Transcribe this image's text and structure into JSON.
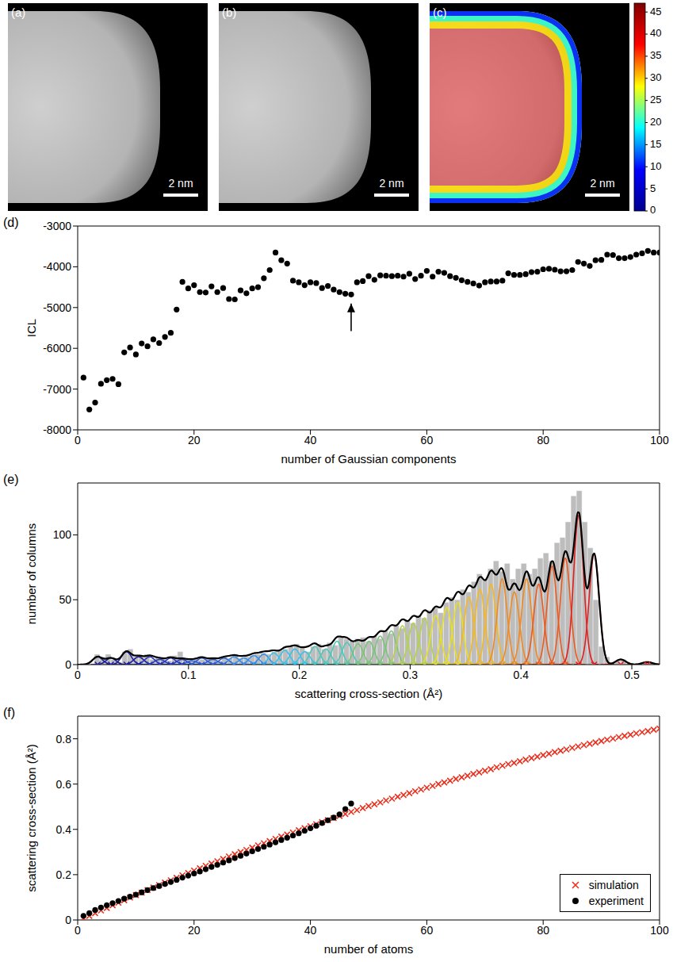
{
  "panels": {
    "images": [
      {
        "label": "(a)",
        "scale_bar": "2 nm"
      },
      {
        "label": "(b)",
        "scale_bar": "2 nm"
      },
      {
        "label": "(c)",
        "scale_bar": "2 nm",
        "colorbar": {
          "range": [
            0,
            47
          ],
          "ticks": [
            0,
            5,
            10,
            15,
            20,
            25,
            30,
            35,
            40,
            45
          ],
          "colors": [
            "#00008f",
            "#0000ff",
            "#00ffff",
            "#ffff00",
            "#ff0000",
            "#800000"
          ]
        }
      }
    ]
  },
  "chart_data": [
    {
      "type": "scatter",
      "panel": "(d)",
      "xlabel": "number of Gaussian components",
      "ylabel": "ICL",
      "color": "#000000",
      "marker": "circle",
      "x": [
        1,
        2,
        3,
        4,
        5,
        6,
        7,
        8,
        9,
        10,
        11,
        12,
        13,
        14,
        15,
        16,
        17,
        18,
        19,
        20,
        21,
        22,
        23,
        24,
        25,
        26,
        27,
        28,
        29,
        30,
        31,
        32,
        33,
        34,
        35,
        36,
        37,
        38,
        39,
        40,
        41,
        42,
        43,
        44,
        45,
        46,
        47,
        48,
        49,
        50,
        51,
        52,
        53,
        54,
        55,
        56,
        57,
        58,
        59,
        60,
        61,
        62,
        63,
        64,
        65,
        66,
        67,
        68,
        69,
        70,
        71,
        72,
        73,
        74,
        75,
        76,
        77,
        78,
        79,
        80,
        81,
        82,
        83,
        84,
        85,
        86,
        87,
        88,
        89,
        90,
        91,
        92,
        93,
        94,
        95,
        96,
        97,
        98,
        99,
        100
      ],
      "values": [
        -6720,
        -7500,
        -7330,
        -6870,
        -6780,
        -6750,
        -6880,
        -6100,
        -5980,
        -6150,
        -5880,
        -5950,
        -5780,
        -5870,
        -5720,
        -5620,
        -5050,
        -4370,
        -4530,
        -4450,
        -4620,
        -4630,
        -4480,
        -4620,
        -4520,
        -4790,
        -4800,
        -4580,
        -4650,
        -4530,
        -4500,
        -4280,
        -4080,
        -3650,
        -3840,
        -3920,
        -4340,
        -4380,
        -4450,
        -4380,
        -4400,
        -4520,
        -4470,
        -4560,
        -4620,
        -4660,
        -4680,
        -4380,
        -4350,
        -4230,
        -4320,
        -4210,
        -4220,
        -4230,
        -4220,
        -4240,
        -4170,
        -4300,
        -4220,
        -4100,
        -4240,
        -4120,
        -4150,
        -4230,
        -4270,
        -4330,
        -4370,
        -4410,
        -4460,
        -4380,
        -4360,
        -4360,
        -4340,
        -4160,
        -4200,
        -4200,
        -4180,
        -4130,
        -4120,
        -4060,
        -4050,
        -4070,
        -4110,
        -4110,
        -4080,
        -3880,
        -3920,
        -3980,
        -3840,
        -3830,
        -3700,
        -3710,
        -3790,
        -3790,
        -3760,
        -3700,
        -3670,
        -3610,
        -3650,
        -3650
      ],
      "arrow": {
        "x": 47,
        "y": [
          -5580,
          -4900
        ]
      },
      "xlim": [
        0,
        100
      ],
      "xticks": [
        0,
        20,
        40,
        60,
        80,
        100
      ],
      "ylim": [
        -8000,
        -3000
      ],
      "yticks": [
        -8000,
        -7000,
        -6000,
        -5000,
        -4000,
        -3000
      ]
    },
    {
      "type": "histogram",
      "panel": "(e)",
      "xlabel": "scattering cross-section (Å²)",
      "ylabel": "number of columns",
      "color": "#bdbdbd",
      "bins": [
        0,
        0.005,
        0.01,
        0.015,
        0.02,
        0.025,
        0.03,
        0.035,
        0.04,
        0.045,
        0.05,
        0.055,
        0.06,
        0.065,
        0.07,
        0.075,
        0.08,
        0.085,
        0.09,
        0.095,
        0.1,
        0.105,
        0.11,
        0.115,
        0.12,
        0.125,
        0.13,
        0.135,
        0.14,
        0.145,
        0.15,
        0.155,
        0.16,
        0.165,
        0.17,
        0.175,
        0.18,
        0.185,
        0.19,
        0.195,
        0.2,
        0.205,
        0.21,
        0.215,
        0.22,
        0.225,
        0.23,
        0.235,
        0.24,
        0.245,
        0.25,
        0.255,
        0.26,
        0.265,
        0.27,
        0.275,
        0.28,
        0.285,
        0.29,
        0.295,
        0.3,
        0.305,
        0.31,
        0.315,
        0.32,
        0.325,
        0.33,
        0.335,
        0.34,
        0.345,
        0.35,
        0.355,
        0.36,
        0.365,
        0.37,
        0.375,
        0.38,
        0.385,
        0.39,
        0.395,
        0.4,
        0.405,
        0.41,
        0.415,
        0.42,
        0.425,
        0.43,
        0.435,
        0.44,
        0.445,
        0.45,
        0.455,
        0.46,
        0.465,
        0.47,
        0.475,
        0.48,
        0.485,
        0.49,
        0.495,
        0.5,
        0.505,
        0.51,
        0.515,
        0.52,
        0.525
      ],
      "counts": [
        0,
        0,
        0,
        8,
        6,
        8,
        4,
        2,
        10,
        12,
        6,
        7,
        8,
        4,
        6,
        5,
        3,
        7,
        10,
        4,
        3,
        5,
        4,
        5,
        6,
        3,
        6,
        5,
        7,
        5,
        6,
        7,
        8,
        9,
        8,
        10,
        11,
        12,
        14,
        16,
        13,
        10,
        14,
        16,
        12,
        17,
        15,
        22,
        20,
        18,
        20,
        21,
        18,
        22,
        20,
        26,
        24,
        30,
        28,
        34,
        32,
        38,
        36,
        42,
        44,
        40,
        48,
        52,
        50,
        58,
        56,
        64,
        70,
        66,
        74,
        80,
        72,
        78,
        66,
        74,
        78,
        70,
        74,
        82,
        86,
        80,
        94,
        98,
        110,
        130,
        134,
        110,
        90,
        50,
        14,
        6,
        2,
        3,
        4,
        1,
        0,
        1,
        2,
        1,
        0
      ],
      "components": {
        "marker": "x",
        "sigma": 0.0045,
        "centers": [
          0.018,
          0.03,
          0.044,
          0.055,
          0.065,
          0.074,
          0.084,
          0.094,
          0.103,
          0.112,
          0.122,
          0.132,
          0.141,
          0.15,
          0.159,
          0.168,
          0.177,
          0.187,
          0.196,
          0.205,
          0.214,
          0.224,
          0.234,
          0.243,
          0.253,
          0.263,
          0.273,
          0.283,
          0.293,
          0.303,
          0.313,
          0.323,
          0.333,
          0.343,
          0.353,
          0.363,
          0.373,
          0.383,
          0.394,
          0.405,
          0.416,
          0.428,
          0.44,
          0.452,
          0.466,
          0.49,
          0.514
        ],
        "heights": [
          6,
          5,
          10,
          6,
          6,
          4,
          5,
          4,
          3,
          5,
          4,
          5,
          6,
          5,
          7,
          8,
          9,
          11,
          12,
          10,
          14,
          12,
          18,
          17,
          16,
          18,
          22,
          26,
          30,
          32,
          36,
          38,
          44,
          48,
          52,
          58,
          62,
          66,
          56,
          66,
          62,
          76,
          82,
          115,
          85,
          4,
          2
        ],
        "colors": [
          "#1f1f9e",
          "#1f1f9e",
          "#1f1f9e",
          "#1f1f9e",
          "#2a3cbf",
          "#2a3cbf",
          "#2a3cbf",
          "#2a3cbf",
          "#3060d8",
          "#3060d8",
          "#3060d8",
          "#3060d8",
          "#3a8ee8",
          "#3a8ee8",
          "#3a8ee8",
          "#3a8ee8",
          "#3fc0e8",
          "#3fc0e8",
          "#3fc0e8",
          "#3fc0e8",
          "#4ec8b8",
          "#4ec8b8",
          "#4ec8b8",
          "#4ec8b8",
          "#7cc47a",
          "#7cc47a",
          "#7cc47a",
          "#7cc47a",
          "#b4d24a",
          "#b4d24a",
          "#b4d24a",
          "#e8e020",
          "#e8e020",
          "#e8e020",
          "#f5b820",
          "#f5b820",
          "#f5b820",
          "#f08a20",
          "#f08a20",
          "#f08a20",
          "#ec5a1e",
          "#ec5a1e",
          "#ec5a1e",
          "#e02020",
          "#e02020",
          "#e02020",
          "#e02020"
        ]
      },
      "total": {
        "color": "#000000"
      },
      "xlim": [
        0,
        0.525
      ],
      "xticks": [
        0,
        0.1,
        0.2,
        0.3,
        0.4,
        0.5
      ],
      "ylim": [
        0,
        140
      ],
      "yticks": [
        0,
        50,
        100
      ]
    },
    {
      "type": "scatter",
      "panel": "(f)",
      "xlabel": "number of atoms",
      "ylabel": "scattering cross-section (Å²)",
      "legend": "lower right",
      "series": [
        {
          "name": "simulation",
          "color": "#e8301e",
          "marker": "x",
          "x": [
            1,
            2,
            3,
            4,
            5,
            6,
            7,
            8,
            9,
            10,
            11,
            12,
            13,
            14,
            15,
            16,
            17,
            18,
            19,
            20,
            21,
            22,
            23,
            24,
            25,
            26,
            27,
            28,
            29,
            30,
            31,
            32,
            33,
            34,
            35,
            36,
            37,
            38,
            39,
            40,
            41,
            42,
            43,
            44,
            45,
            46,
            47,
            48,
            49,
            50,
            51,
            52,
            53,
            54,
            55,
            56,
            57,
            58,
            59,
            60,
            61,
            62,
            63,
            64,
            65,
            66,
            67,
            68,
            69,
            70,
            71,
            72,
            73,
            74,
            75,
            76,
            77,
            78,
            79,
            80,
            81,
            82,
            83,
            84,
            85,
            86,
            87,
            88,
            89,
            90,
            91,
            92,
            93,
            94,
            95,
            96,
            97,
            98,
            99,
            100
          ],
          "values": [
            0.007,
            0.018,
            0.03,
            0.042,
            0.053,
            0.065,
            0.076,
            0.087,
            0.099,
            0.11,
            0.121,
            0.132,
            0.143,
            0.154,
            0.165,
            0.175,
            0.186,
            0.197,
            0.207,
            0.218,
            0.228,
            0.239,
            0.249,
            0.259,
            0.269,
            0.28,
            0.29,
            0.3,
            0.309,
            0.319,
            0.329,
            0.339,
            0.348,
            0.358,
            0.368,
            0.377,
            0.386,
            0.396,
            0.405,
            0.414,
            0.423,
            0.432,
            0.441,
            0.45,
            0.459,
            0.468,
            0.477,
            0.485,
            0.494,
            0.503,
            0.511,
            0.519,
            0.528,
            0.536,
            0.544,
            0.552,
            0.56,
            0.568,
            0.576,
            0.584,
            0.592,
            0.6,
            0.607,
            0.615,
            0.623,
            0.63,
            0.637,
            0.645,
            0.652,
            0.659,
            0.666,
            0.674,
            0.681,
            0.688,
            0.694,
            0.701,
            0.708,
            0.715,
            0.721,
            0.728,
            0.734,
            0.741,
            0.747,
            0.753,
            0.76,
            0.766,
            0.772,
            0.778,
            0.784,
            0.79,
            0.796,
            0.801,
            0.807,
            0.813,
            0.818,
            0.824,
            0.829,
            0.834,
            0.84,
            0.845
          ]
        },
        {
          "name": "experiment",
          "color": "#000000",
          "marker": "circle",
          "x": [
            1,
            2,
            3,
            4,
            5,
            6,
            7,
            8,
            9,
            10,
            11,
            12,
            13,
            14,
            15,
            16,
            17,
            18,
            19,
            20,
            21,
            22,
            23,
            24,
            25,
            26,
            27,
            28,
            29,
            30,
            31,
            32,
            33,
            34,
            35,
            36,
            37,
            38,
            39,
            40,
            41,
            42,
            43,
            44,
            45,
            46,
            47
          ],
          "values": [
            0.018,
            0.03,
            0.044,
            0.055,
            0.065,
            0.074,
            0.084,
            0.094,
            0.103,
            0.112,
            0.122,
            0.132,
            0.141,
            0.15,
            0.159,
            0.168,
            0.177,
            0.187,
            0.196,
            0.205,
            0.214,
            0.224,
            0.234,
            0.243,
            0.253,
            0.263,
            0.273,
            0.283,
            0.293,
            0.303,
            0.313,
            0.323,
            0.333,
            0.343,
            0.353,
            0.363,
            0.373,
            0.383,
            0.394,
            0.405,
            0.416,
            0.428,
            0.44,
            0.452,
            0.466,
            0.49,
            0.514
          ]
        }
      ],
      "xlim": [
        0,
        100
      ],
      "xticks": [
        0,
        20,
        40,
        60,
        80,
        100
      ],
      "ylim": [
        0,
        0.9
      ],
      "yticks": [
        0,
        0.2,
        0.4,
        0.6,
        0.8
      ]
    }
  ]
}
